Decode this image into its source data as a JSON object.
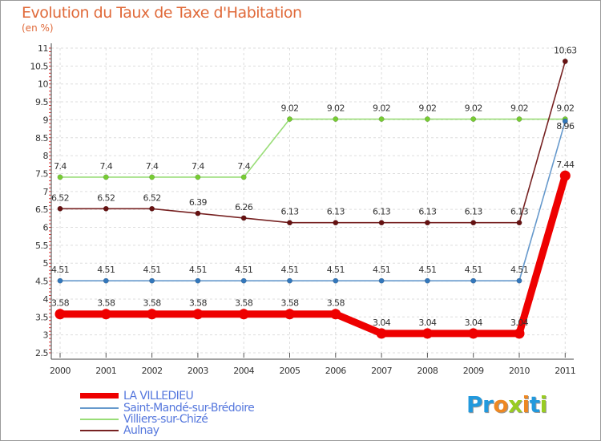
{
  "chart_data": {
    "type": "line",
    "title": "Evolution du Taux de Taxe d'Habitation",
    "ylabel": "(en %)",
    "x": [
      "2000",
      "2001",
      "2002",
      "2003",
      "2004",
      "2005",
      "2006",
      "2007",
      "2008",
      "2009",
      "2010",
      "2011"
    ],
    "ylim": [
      2.5,
      11
    ],
    "yticks": [
      "2.5",
      "3",
      "3.5",
      "4",
      "4.5",
      "5",
      "5.5",
      "6",
      "6.5",
      "7",
      "7.5",
      "8",
      "8.5",
      "9",
      "9.5",
      "10",
      "10.5",
      "11"
    ],
    "series": [
      {
        "name": "LA VILLEDIEU",
        "color": "#ee0000",
        "marker": "#ee0000",
        "values": [
          3.58,
          3.58,
          3.58,
          3.58,
          3.58,
          3.58,
          3.58,
          3.04,
          3.04,
          3.04,
          3.04,
          7.44
        ],
        "labels": [
          "3.58",
          "3.58",
          "3.58",
          "3.58",
          "3.58",
          "3.58",
          "3.58",
          "3.04",
          "3.04",
          "3.04",
          "3.04",
          "7.44"
        ]
      },
      {
        "name": "Saint-Mandé-sur-Brédoire",
        "color": "#6699cc",
        "marker": "#3377bb",
        "values": [
          4.51,
          4.51,
          4.51,
          4.51,
          4.51,
          4.51,
          4.51,
          4.51,
          4.51,
          4.51,
          4.51,
          8.96
        ],
        "labels": [
          "4.51",
          "4.51",
          "4.51",
          "4.51",
          "4.51",
          "4.51",
          "4.51",
          "4.51",
          "4.51",
          "4.51",
          "4.51",
          "8.96"
        ]
      },
      {
        "name": "Villiers-sur-Chizé",
        "color": "#99dd77",
        "marker": "#77cc33",
        "values": [
          7.4,
          7.4,
          7.4,
          7.4,
          7.4,
          9.02,
          9.02,
          9.02,
          9.02,
          9.02,
          9.02,
          9.02
        ],
        "labels": [
          "7.4",
          "7.4",
          "7.4",
          "7.4",
          "7.4",
          "9.02",
          "9.02",
          "9.02",
          "9.02",
          "9.02",
          "9.02",
          "9.02"
        ]
      },
      {
        "name": "Aulnay",
        "color": "#772222",
        "marker": "#661111",
        "values": [
          6.52,
          6.52,
          6.52,
          6.39,
          6.26,
          6.13,
          6.13,
          6.13,
          6.13,
          6.13,
          6.13,
          10.63
        ],
        "labels": [
          "6.52",
          "6.52",
          "6.52",
          "6.39",
          "6.26",
          "6.13",
          "6.13",
          "6.13",
          "6.13",
          "6.13",
          "6.13",
          "10.63"
        ]
      }
    ]
  },
  "logo": {
    "letters": [
      "P",
      "r",
      "o",
      "x",
      "i",
      "t",
      "i"
    ],
    "colors": [
      "#2299dd",
      "#2299dd",
      "#ee8822",
      "#99cc22",
      "#ee8822",
      "#2299dd",
      "#99cc22"
    ]
  }
}
